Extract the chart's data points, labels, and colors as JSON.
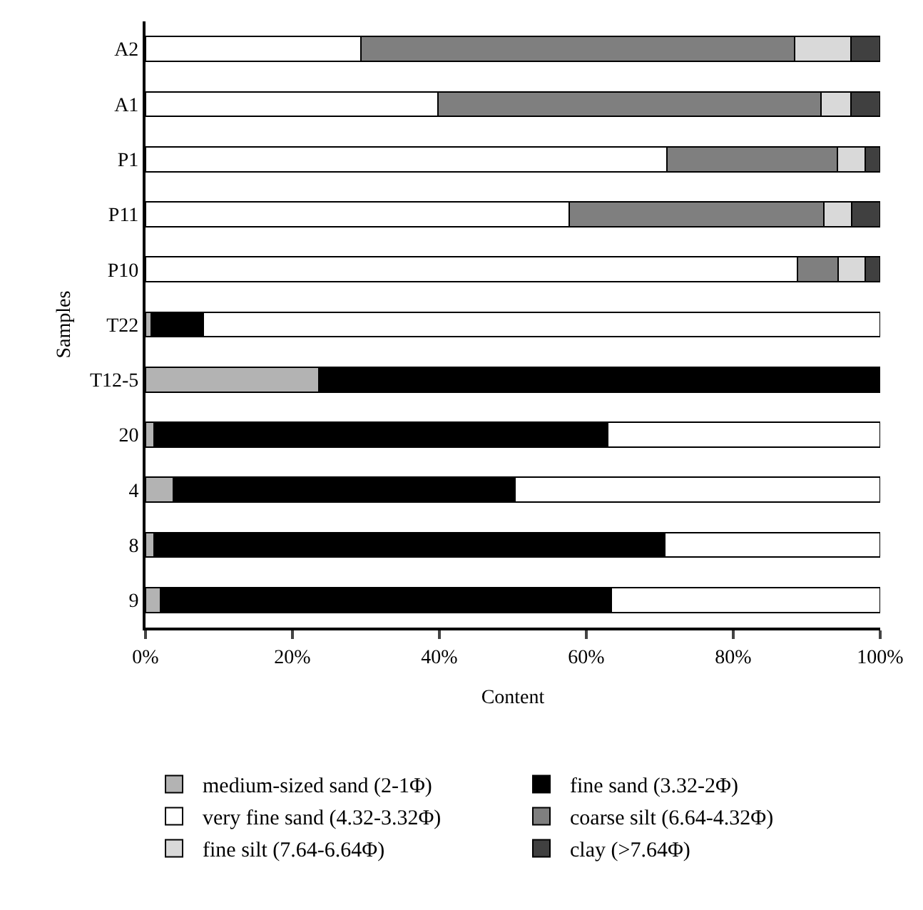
{
  "chart_data": {
    "type": "bar",
    "orientation": "horizontal",
    "stacked": true,
    "xlabel": "Content",
    "ylabel": "Samples",
    "categories": [
      "A2",
      "A1",
      "P1",
      "P11",
      "P10",
      "T22",
      "T12-5",
      "20",
      "4",
      "8",
      "9"
    ],
    "xlim": [
      0,
      100
    ],
    "xticks": [
      {
        "value": 0,
        "label": "0%"
      },
      {
        "value": 20,
        "label": "20%"
      },
      {
        "value": 40,
        "label": "40%"
      },
      {
        "value": 60,
        "label": "60%"
      },
      {
        "value": 80,
        "label": "80%"
      },
      {
        "value": 100,
        "label": "100%"
      }
    ],
    "grid": false,
    "legend": "bottom",
    "series": [
      {
        "name": "medium-sized sand (2-1Φ)",
        "color": "#b3b3b3",
        "values": [
          null,
          null,
          null,
          null,
          null,
          0.8,
          23.6,
          1.2,
          3.8,
          1.2,
          2
        ]
      },
      {
        "name": "fine sand (3.32-2Φ)",
        "color": "#000000",
        "values": [
          null,
          null,
          null,
          null,
          null,
          7.1,
          76.4,
          61.7,
          46.5,
          69.5,
          61.4
        ]
      },
      {
        "name": "very fine sand (4.32-3.32Φ)",
        "color": "#ffffff",
        "values": [
          29.3,
          39.8,
          71,
          57.7,
          88.7,
          92.1,
          null,
          37.1,
          49.7,
          29.3,
          36.6
        ]
      },
      {
        "name": "coarse silt (6.64-4.32Φ)",
        "color": "#7f7f7f",
        "values": [
          59,
          52.1,
          23.2,
          34.6,
          5.6,
          null,
          null,
          null,
          null,
          null,
          null
        ]
      },
      {
        "name": "fine silt (7.64-6.64Φ)",
        "color": "#d9d9d9",
        "values": [
          7.7,
          4.1,
          3.8,
          3.8,
          3.7,
          null,
          null,
          null,
          null,
          null,
          null
        ]
      },
      {
        "name": "clay (>7.64Φ)",
        "color": "#404040",
        "values": [
          4,
          4,
          2,
          3.9,
          2,
          null,
          null,
          null,
          null,
          null,
          null
        ]
      }
    ]
  }
}
